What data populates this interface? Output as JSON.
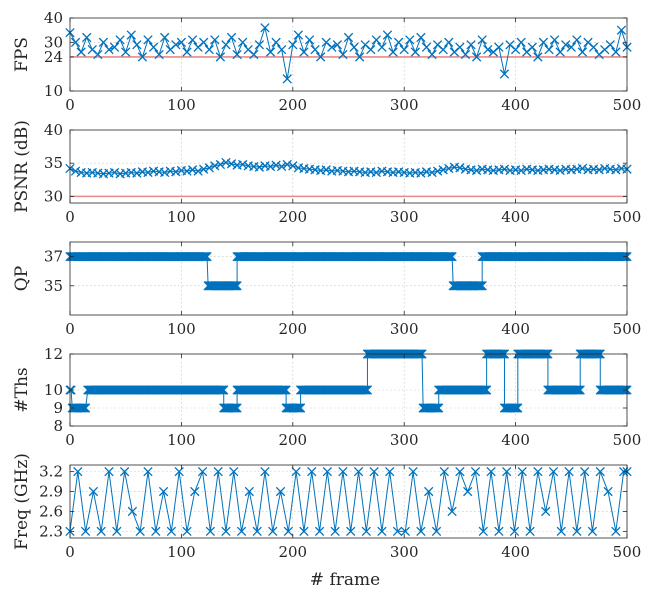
{
  "figure": {
    "xlabel": "# frame"
  },
  "colors": {
    "series": "#0072BD",
    "reference": "#E8898A",
    "frame": "#262626",
    "grid": "#bdbdbd"
  },
  "chart_data": [
    {
      "type": "line",
      "ylabel": "FPS",
      "xlim": [
        0,
        500
      ],
      "ylim": [
        10,
        40
      ],
      "xticks": [
        0,
        100,
        200,
        300,
        400,
        500
      ],
      "yticks": [
        10,
        24,
        30,
        40
      ],
      "grid": true,
      "marker": "x",
      "reference_line": 24,
      "series": [
        {
          "x": [
            0,
            5,
            10,
            15,
            20,
            25,
            30,
            35,
            40,
            45,
            50,
            55,
            60,
            65,
            70,
            75,
            80,
            85,
            90,
            95,
            100,
            105,
            110,
            115,
            120,
            125,
            130,
            135,
            140,
            145,
            150,
            155,
            160,
            165,
            170,
            175,
            180,
            185,
            190,
            195,
            200,
            205,
            210,
            215,
            220,
            225,
            230,
            235,
            240,
            245,
            250,
            255,
            260,
            265,
            270,
            275,
            280,
            285,
            290,
            295,
            300,
            305,
            310,
            315,
            320,
            325,
            330,
            335,
            340,
            345,
            350,
            355,
            360,
            365,
            370,
            375,
            380,
            385,
            390,
            395,
            400,
            405,
            410,
            415,
            420,
            425,
            430,
            435,
            440,
            445,
            450,
            455,
            460,
            465,
            470,
            475,
            480,
            485,
            490,
            495,
            500
          ],
          "values": [
            34,
            30,
            26,
            32,
            27,
            25,
            30,
            27,
            28,
            31,
            26,
            33,
            29,
            24,
            31,
            28,
            25,
            32,
            27,
            29,
            30,
            26,
            31,
            28,
            30,
            27,
            31,
            24,
            29,
            32,
            25,
            30,
            27,
            25,
            29,
            36,
            26,
            30,
            27,
            15,
            29,
            33,
            26,
            31,
            27,
            24,
            30,
            28,
            29,
            25,
            32,
            28,
            24,
            29,
            27,
            31,
            28,
            33,
            26,
            30,
            27,
            31,
            26,
            32,
            28,
            25,
            29,
            27,
            30,
            26,
            28,
            25,
            29,
            24,
            31,
            27,
            26,
            28,
            17,
            29,
            27,
            30,
            26,
            28,
            24,
            30,
            27,
            31,
            26,
            29,
            28,
            31,
            26,
            30,
            28,
            25,
            27,
            29,
            26,
            35,
            28
          ]
        }
      ]
    },
    {
      "type": "line",
      "ylabel": "PSNR (dB)",
      "xlim": [
        0,
        500
      ],
      "ylim": [
        29,
        40
      ],
      "xticks": [
        0,
        100,
        200,
        300,
        400,
        500
      ],
      "yticks": [
        30,
        35,
        40
      ],
      "grid": true,
      "marker": "x",
      "reference_line": 30,
      "series": [
        {
          "x": [
            0,
            5,
            10,
            15,
            20,
            25,
            30,
            35,
            40,
            45,
            50,
            55,
            60,
            65,
            70,
            75,
            80,
            85,
            90,
            95,
            100,
            105,
            110,
            115,
            120,
            125,
            130,
            135,
            140,
            145,
            150,
            155,
            160,
            165,
            170,
            175,
            180,
            185,
            190,
            195,
            200,
            205,
            210,
            215,
            220,
            225,
            230,
            235,
            240,
            245,
            250,
            255,
            260,
            265,
            270,
            275,
            280,
            285,
            290,
            295,
            300,
            305,
            310,
            315,
            320,
            325,
            330,
            335,
            340,
            345,
            350,
            355,
            360,
            365,
            370,
            375,
            380,
            385,
            390,
            395,
            400,
            405,
            410,
            415,
            420,
            425,
            430,
            435,
            440,
            445,
            450,
            455,
            460,
            465,
            470,
            475,
            480,
            485,
            490,
            495,
            500
          ],
          "values": [
            34.2,
            33.8,
            33.6,
            33.5,
            33.6,
            33.5,
            33.4,
            33.5,
            33.6,
            33.4,
            33.5,
            33.6,
            33.5,
            33.7,
            33.6,
            33.8,
            33.7,
            33.6,
            33.8,
            33.7,
            33.9,
            33.8,
            34.0,
            33.8,
            34.1,
            34.3,
            34.6,
            34.8,
            35.1,
            34.9,
            34.7,
            34.8,
            34.6,
            34.5,
            34.4,
            34.6,
            34.5,
            34.7,
            34.5,
            34.8,
            34.6,
            34.3,
            34.2,
            34.1,
            34.0,
            33.9,
            34.0,
            33.8,
            33.9,
            33.8,
            33.7,
            33.8,
            33.7,
            33.6,
            33.7,
            33.6,
            33.8,
            33.7,
            33.6,
            33.7,
            33.6,
            33.5,
            33.6,
            33.5,
            33.7,
            33.6,
            33.8,
            34.0,
            34.2,
            34.4,
            34.3,
            34.1,
            34.0,
            33.9,
            34.1,
            34.0,
            33.9,
            34.0,
            34.1,
            33.9,
            34.0,
            33.9,
            34.1,
            34.0,
            33.9,
            34.0,
            34.1,
            34.0,
            33.9,
            34.1,
            34.0,
            34.1,
            34.2,
            34.0,
            34.1,
            34.0,
            34.2,
            34.1,
            34.0,
            34.2,
            34.1
          ]
        }
      ]
    },
    {
      "type": "line",
      "ylabel": "QP",
      "xlim": [
        0,
        500
      ],
      "ylim": [
        33,
        38
      ],
      "xticks": [
        0,
        100,
        200,
        300,
        400,
        500
      ],
      "yticks": [
        35,
        37
      ],
      "grid": true,
      "marker": "x",
      "series": [
        {
          "segments": [
            {
              "x": [
                0,
                123
              ],
              "value": 37
            },
            {
              "x": [
                124,
                150
              ],
              "value": 35
            },
            {
              "x": [
                150,
                343
              ],
              "value": 37
            },
            {
              "x": [
                344,
                370
              ],
              "value": 35
            },
            {
              "x": [
                370,
                500
              ],
              "value": 37
            }
          ]
        }
      ]
    },
    {
      "type": "line",
      "ylabel": "#Ths",
      "xlim": [
        0,
        500
      ],
      "ylim": [
        8,
        12
      ],
      "xticks": [
        0,
        100,
        200,
        300,
        400,
        500
      ],
      "yticks": [
        8,
        9,
        10,
        12
      ],
      "grid": true,
      "marker": "x",
      "series": [
        {
          "segments": [
            {
              "x": [
                0,
                1
              ],
              "value": 10
            },
            {
              "x": [
                2,
                14
              ],
              "value": 9
            },
            {
              "x": [
                16,
                138
              ],
              "value": 10
            },
            {
              "x": [
                138,
                150
              ],
              "value": 9
            },
            {
              "x": [
                150,
                194
              ],
              "value": 10
            },
            {
              "x": [
                194,
                207
              ],
              "value": 9
            },
            {
              "x": [
                207,
                267
              ],
              "value": 10
            },
            {
              "x": [
                267,
                316
              ],
              "value": 12
            },
            {
              "x": [
                317,
                331
              ],
              "value": 9
            },
            {
              "x": [
                331,
                374
              ],
              "value": 10
            },
            {
              "x": [
                374,
                390
              ],
              "value": 12
            },
            {
              "x": [
                390,
                402
              ],
              "value": 9
            },
            {
              "x": [
                402,
                429
              ],
              "value": 12
            },
            {
              "x": [
                429,
                458
              ],
              "value": 10
            },
            {
              "x": [
                458,
                476
              ],
              "value": 12
            },
            {
              "x": [
                476,
                500
              ],
              "value": 10
            }
          ]
        }
      ]
    },
    {
      "type": "line",
      "ylabel": "Freq (GHz)",
      "xlim": [
        0,
        500
      ],
      "ylim": [
        2.2,
        3.3
      ],
      "xticks": [
        0,
        100,
        200,
        300,
        400,
        500
      ],
      "yticks": [
        2.3,
        2.6,
        2.9,
        3.2
      ],
      "grid": true,
      "marker": "x",
      "series": [
        {
          "x": [
            0,
            7,
            14,
            21,
            28,
            35,
            42,
            49,
            56,
            63,
            70,
            77,
            84,
            91,
            98,
            105,
            112,
            119,
            126,
            133,
            140,
            147,
            154,
            161,
            168,
            175,
            182,
            189,
            196,
            203,
            210,
            217,
            224,
            231,
            238,
            245,
            252,
            259,
            266,
            273,
            280,
            287,
            294,
            301,
            308,
            315,
            322,
            329,
            336,
            343,
            350,
            357,
            364,
            371,
            378,
            385,
            392,
            399,
            406,
            413,
            420,
            427,
            434,
            441,
            448,
            455,
            462,
            469,
            476,
            483,
            490,
            497,
            500
          ],
          "values": [
            2.3,
            3.2,
            2.3,
            2.9,
            2.3,
            3.2,
            2.3,
            3.2,
            2.6,
            2.3,
            3.2,
            2.3,
            2.9,
            2.3,
            3.2,
            2.3,
            2.9,
            3.2,
            2.3,
            3.2,
            2.3,
            3.2,
            2.3,
            2.9,
            2.3,
            3.2,
            2.3,
            2.9,
            2.3,
            3.2,
            2.3,
            3.2,
            2.3,
            3.2,
            2.3,
            3.2,
            2.3,
            3.2,
            2.3,
            3.2,
            2.3,
            3.2,
            2.3,
            2.3,
            3.2,
            2.3,
            2.9,
            2.3,
            3.2,
            2.6,
            3.2,
            2.9,
            3.2,
            2.3,
            3.2,
            2.3,
            3.2,
            2.3,
            3.2,
            2.3,
            3.2,
            2.6,
            3.2,
            2.3,
            3.2,
            2.3,
            3.2,
            2.3,
            3.2,
            2.9,
            2.3,
            3.2,
            3.2
          ]
        }
      ]
    }
  ]
}
